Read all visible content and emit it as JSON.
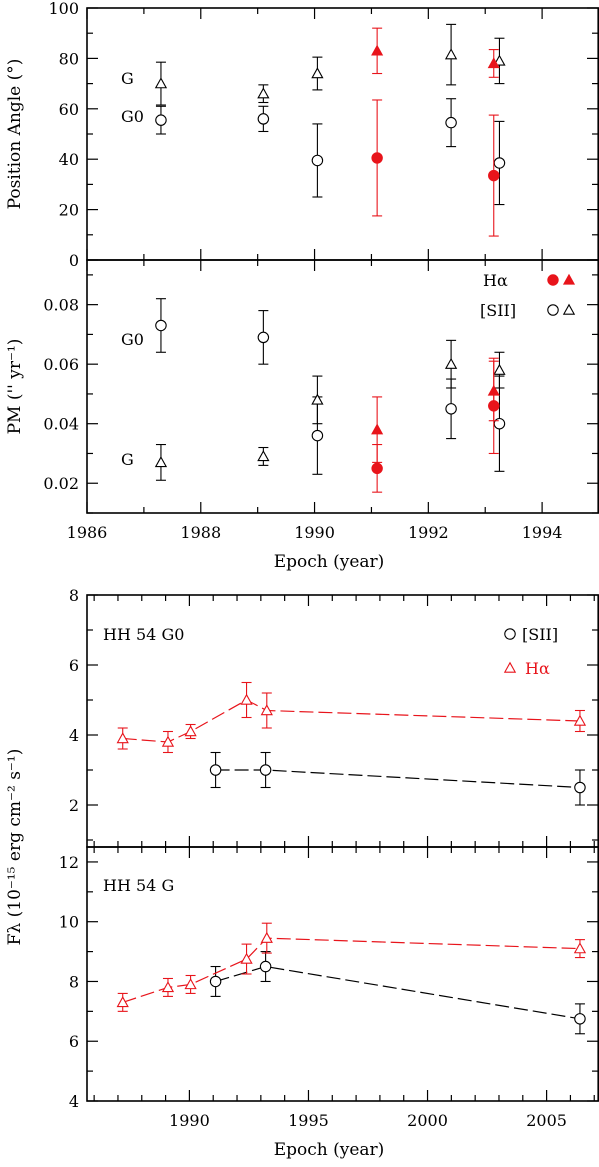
{
  "colors": {
    "sii": "#000000",
    "halpha": "#e8141b"
  },
  "chart_data": [
    {
      "type": "scatter",
      "ylabel": "Position Angle (°)",
      "xlim": [
        1986,
        1995
      ],
      "ylim": [
        0,
        100
      ],
      "x_ticks": [],
      "y_ticks": [
        "0",
        "20",
        "40",
        "60",
        "80",
        "100"
      ],
      "labels": [
        "G",
        "G0"
      ],
      "series": [
        {
          "color": "sii",
          "marker": "open-triangle",
          "points": [
            {
              "x": 1987.3,
              "y": 70,
              "err": 8.5
            },
            {
              "x": 1989.1,
              "y": 66,
              "err": 3.5
            },
            {
              "x": 1990.05,
              "y": 74,
              "err": 6.5
            },
            {
              "x": 1992.4,
              "y": 81.5,
              "err": 12
            },
            {
              "x": 1993.25,
              "y": 79,
              "err": 9
            }
          ]
        },
        {
          "color": "sii",
          "marker": "open-circle",
          "points": [
            {
              "x": 1987.3,
              "y": 55.5,
              "err": 5.5
            },
            {
              "x": 1989.1,
              "y": 56,
              "err": 5
            },
            {
              "x": 1990.05,
              "y": 39.5,
              "err": 14.5
            },
            {
              "x": 1992.4,
              "y": 54.5,
              "err": 9.5
            },
            {
              "x": 1993.25,
              "y": 38.5,
              "err": 16.5
            }
          ]
        },
        {
          "color": "halpha",
          "marker": "filled-triangle",
          "points": [
            {
              "x": 1991.1,
              "y": 83,
              "err": 9
            },
            {
              "x": 1993.15,
              "y": 78,
              "err": 5.5
            }
          ]
        },
        {
          "color": "halpha",
          "marker": "filled-circle",
          "points": [
            {
              "x": 1991.1,
              "y": 40.5,
              "err": 23
            },
            {
              "x": 1993.15,
              "y": 33.5,
              "err": 24
            }
          ]
        }
      ]
    },
    {
      "type": "scatter",
      "ylabel": "PM ('' yr⁻¹)",
      "xlabel": "Epoch (year)",
      "xlim": [
        1986,
        1995
      ],
      "ylim": [
        0.01,
        0.095
      ],
      "x_ticks": [
        "1986",
        "1988",
        "1990",
        "1992",
        "1994"
      ],
      "y_ticks": [
        "0.02",
        "0.04",
        "0.06",
        "0.08"
      ],
      "labels": [
        "G0",
        "G"
      ],
      "legend": {
        "position": "top-right",
        "entries": [
          "Hα",
          "[SII]"
        ]
      },
      "series": [
        {
          "color": "sii",
          "marker": "open-circle",
          "points": [
            {
              "x": 1987.3,
              "y": 0.073,
              "err": 0.009
            },
            {
              "x": 1989.1,
              "y": 0.069,
              "err": 0.009
            },
            {
              "x": 1990.05,
              "y": 0.036,
              "err": 0.013
            },
            {
              "x": 1992.4,
              "y": 0.045,
              "err": 0.01
            },
            {
              "x": 1993.25,
              "y": 0.04,
              "err": 0.016
            }
          ]
        },
        {
          "color": "sii",
          "marker": "open-triangle",
          "points": [
            {
              "x": 1987.3,
              "y": 0.027,
              "err": 0.006
            },
            {
              "x": 1989.1,
              "y": 0.029,
              "err": 0.003
            },
            {
              "x": 1990.05,
              "y": 0.048,
              "err": 0.008
            },
            {
              "x": 1992.4,
              "y": 0.06,
              "err": 0.008
            },
            {
              "x": 1993.25,
              "y": 0.058,
              "err": 0.006
            }
          ]
        },
        {
          "color": "halpha",
          "marker": "filled-circle",
          "points": [
            {
              "x": 1991.1,
              "y": 0.025,
              "err": 0.008
            },
            {
              "x": 1993.15,
              "y": 0.046,
              "err": 0.016
            }
          ]
        },
        {
          "color": "halpha",
          "marker": "filled-triangle",
          "points": [
            {
              "x": 1991.1,
              "y": 0.038,
              "err": 0.011
            },
            {
              "x": 1993.15,
              "y": 0.051,
              "err": 0.01
            }
          ]
        }
      ]
    },
    {
      "type": "line",
      "ylabel": "Fλ (10⁻¹⁵ erg cm⁻² s⁻¹)",
      "xlim": [
        1985.7,
        2007.2
      ],
      "ylim": [
        0.8,
        8
      ],
      "x_ticks": [],
      "y_ticks": [
        "2",
        "4",
        "6",
        "8"
      ],
      "panel_label": "HH 54 G0",
      "legend": {
        "position": "top-right",
        "entries": [
          "[SII]",
          "Hα"
        ]
      },
      "series": [
        {
          "name": "[SII]",
          "color": "sii",
          "marker": "open-circle",
          "points": [
            {
              "x": 1991.1,
              "y": 3.0,
              "err": 0.5
            },
            {
              "x": 1993.2,
              "y": 3.0,
              "err": 0.5
            },
            {
              "x": 2006.4,
              "y": 2.5,
              "err": 0.5
            }
          ]
        },
        {
          "name": "Hα",
          "color": "halpha",
          "marker": "open-triangle",
          "points": [
            {
              "x": 1987.2,
              "y": 3.9,
              "err": 0.3
            },
            {
              "x": 1989.1,
              "y": 3.8,
              "err": 0.3
            },
            {
              "x": 1990.05,
              "y": 4.1,
              "err": 0.2
            },
            {
              "x": 1992.4,
              "y": 5.0,
              "err": 0.5
            },
            {
              "x": 1993.25,
              "y": 4.7,
              "err": 0.5
            },
            {
              "x": 2006.4,
              "y": 4.4,
              "err": 0.3
            }
          ]
        }
      ]
    },
    {
      "type": "line",
      "xlabel": "Epoch (year)",
      "xlim": [
        1985.7,
        2007.2
      ],
      "ylim": [
        4,
        12.5
      ],
      "x_ticks": [
        "1990",
        "1995",
        "2000",
        "2005"
      ],
      "y_ticks": [
        "4",
        "6",
        "8",
        "10",
        "12"
      ],
      "panel_label": "HH 54 G",
      "series": [
        {
          "name": "[SII]",
          "color": "sii",
          "marker": "open-circle",
          "points": [
            {
              "x": 1991.1,
              "y": 8.0,
              "err": 0.5
            },
            {
              "x": 1993.2,
              "y": 8.5,
              "err": 0.5
            },
            {
              "x": 2006.4,
              "y": 6.75,
              "err": 0.5
            }
          ]
        },
        {
          "name": "Hα",
          "color": "halpha",
          "marker": "open-triangle",
          "points": [
            {
              "x": 1987.2,
              "y": 7.3,
              "err": 0.3
            },
            {
              "x": 1989.1,
              "y": 7.8,
              "err": 0.3
            },
            {
              "x": 1990.05,
              "y": 7.9,
              "err": 0.3
            },
            {
              "x": 1992.4,
              "y": 8.75,
              "err": 0.5
            },
            {
              "x": 1993.25,
              "y": 9.45,
              "err": 0.5
            },
            {
              "x": 2006.4,
              "y": 9.1,
              "err": 0.3
            }
          ]
        }
      ]
    }
  ]
}
